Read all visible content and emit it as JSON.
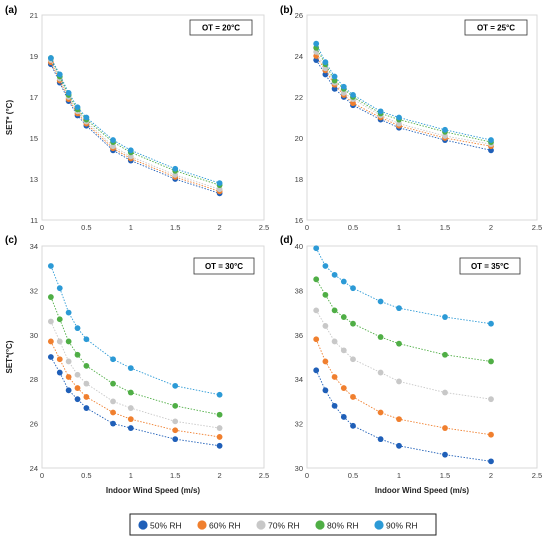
{
  "chart_data": [
    {
      "panel": "(a)",
      "type": "scatter",
      "annotation": "OT = 20°C",
      "ylabel": "SET* (°C)",
      "xlabel": "",
      "xlim": [
        0,
        2.5
      ],
      "ylim": [
        11,
        21
      ],
      "xticks": [
        "0",
        "0.5",
        "1",
        "1.5",
        "2",
        "2.5"
      ],
      "yticks": [
        "11",
        "13",
        "15",
        "17",
        "19",
        "21"
      ],
      "x": [
        0.1,
        0.2,
        0.3,
        0.4,
        0.5,
        0.8,
        1.0,
        1.5,
        2.0
      ],
      "series": [
        {
          "name": "50% RH",
          "values": [
            18.6,
            17.7,
            16.8,
            16.1,
            15.6,
            14.4,
            13.9,
            13.0,
            12.3
          ]
        },
        {
          "name": "60% RH",
          "values": [
            18.7,
            17.8,
            16.9,
            16.2,
            15.7,
            14.5,
            14.0,
            13.1,
            12.4
          ]
        },
        {
          "name": "70% RH",
          "values": [
            18.8,
            17.9,
            17.0,
            16.3,
            15.8,
            14.6,
            14.1,
            13.2,
            12.5
          ]
        },
        {
          "name": "80% RH",
          "values": [
            18.9,
            18.0,
            17.1,
            16.4,
            15.9,
            14.8,
            14.3,
            13.4,
            12.7
          ]
        },
        {
          "name": "90% RH",
          "values": [
            18.9,
            18.1,
            17.2,
            16.5,
            16.0,
            14.9,
            14.4,
            13.5,
            12.8
          ]
        }
      ]
    },
    {
      "panel": "(b)",
      "type": "scatter",
      "annotation": "OT = 25°C",
      "ylabel": "",
      "xlabel": "",
      "xlim": [
        0,
        2.5
      ],
      "ylim": [
        16,
        26
      ],
      "xticks": [
        "0",
        "0.5",
        "1",
        "1.5",
        "2",
        "2.5"
      ],
      "yticks": [
        "16",
        "18",
        "20",
        "22",
        "24",
        "26"
      ],
      "x": [
        0.1,
        0.2,
        0.3,
        0.4,
        0.5,
        0.8,
        1.0,
        1.5,
        2.0
      ],
      "series": [
        {
          "name": "50% RH",
          "values": [
            23.8,
            23.1,
            22.4,
            22.0,
            21.6,
            20.9,
            20.5,
            19.9,
            19.4
          ]
        },
        {
          "name": "60% RH",
          "values": [
            24.0,
            23.3,
            22.6,
            22.1,
            21.7,
            21.0,
            20.6,
            20.0,
            19.6
          ]
        },
        {
          "name": "70% RH",
          "values": [
            24.2,
            23.4,
            22.7,
            22.2,
            21.9,
            21.1,
            20.7,
            20.1,
            19.7
          ]
        },
        {
          "name": "80% RH",
          "values": [
            24.4,
            23.6,
            22.8,
            22.4,
            22.0,
            21.2,
            20.9,
            20.3,
            19.8
          ]
        },
        {
          "name": "90% RH",
          "values": [
            24.6,
            23.7,
            23.0,
            22.5,
            22.1,
            21.3,
            21.0,
            20.4,
            19.9
          ]
        }
      ]
    },
    {
      "panel": "(c)",
      "type": "scatter",
      "annotation": "OT = 30°C",
      "ylabel": "SET*(°C)",
      "xlabel": "Indoor Wind Speed (m/s)",
      "xlim": [
        0,
        2.5
      ],
      "ylim": [
        24,
        34
      ],
      "xticks": [
        "0",
        "0.5",
        "1",
        "1.5",
        "2",
        "2.5"
      ],
      "yticks": [
        "24",
        "26",
        "28",
        "30",
        "32",
        "34"
      ],
      "x": [
        0.1,
        0.2,
        0.3,
        0.4,
        0.5,
        0.8,
        1.0,
        1.5,
        2.0
      ],
      "series": [
        {
          "name": "50% RH",
          "values": [
            29.0,
            28.3,
            27.5,
            27.1,
            26.7,
            26.0,
            25.8,
            25.3,
            25.0
          ]
        },
        {
          "name": "60% RH",
          "values": [
            29.7,
            28.9,
            28.1,
            27.6,
            27.2,
            26.5,
            26.2,
            25.7,
            25.4
          ]
        },
        {
          "name": "70% RH",
          "values": [
            30.6,
            29.7,
            28.8,
            28.2,
            27.8,
            27.0,
            26.7,
            26.1,
            25.8
          ]
        },
        {
          "name": "80% RH",
          "values": [
            31.7,
            30.7,
            29.7,
            29.1,
            28.6,
            27.8,
            27.4,
            26.8,
            26.4
          ]
        },
        {
          "name": "90% RH",
          "values": [
            33.1,
            32.1,
            31.0,
            30.3,
            29.8,
            28.9,
            28.5,
            27.7,
            27.3
          ]
        }
      ]
    },
    {
      "panel": "(d)",
      "type": "scatter",
      "annotation": "OT = 35°C",
      "ylabel": "",
      "xlabel": "Indoor Wind Speed (m/s)",
      "xlim": [
        0,
        2.5
      ],
      "ylim": [
        30,
        40
      ],
      "xticks": [
        "0",
        "0.5",
        "1",
        "1.5",
        "2",
        "2.5"
      ],
      "yticks": [
        "30",
        "32",
        "34",
        "36",
        "38",
        "40"
      ],
      "x": [
        0.1,
        0.2,
        0.3,
        0.4,
        0.5,
        0.8,
        1.0,
        1.5,
        2.0
      ],
      "series": [
        {
          "name": "50% RH",
          "values": [
            34.4,
            33.5,
            32.8,
            32.3,
            31.9,
            31.3,
            31.0,
            30.6,
            30.3
          ]
        },
        {
          "name": "60% RH",
          "values": [
            35.8,
            34.8,
            34.1,
            33.6,
            33.2,
            32.5,
            32.2,
            31.8,
            31.5
          ]
        },
        {
          "name": "70% RH",
          "values": [
            37.1,
            36.4,
            35.7,
            35.3,
            34.9,
            34.3,
            33.9,
            33.4,
            33.1
          ]
        },
        {
          "name": "80% RH",
          "values": [
            38.5,
            37.8,
            37.1,
            36.8,
            36.5,
            35.9,
            35.6,
            35.1,
            34.8
          ]
        },
        {
          "name": "90% RH",
          "values": [
            39.9,
            39.1,
            38.7,
            38.4,
            38.1,
            37.5,
            37.2,
            36.8,
            36.5
          ]
        }
      ]
    }
  ],
  "legend": {
    "entries": [
      "50% RH",
      "60% RH",
      "70% RH",
      "80% RH",
      "90% RH"
    ],
    "placement": "bottom"
  },
  "colors": {
    "50% RH": "#1f5fb8",
    "60% RH": "#f07f2e",
    "70% RH": "#c8c8c8",
    "80% RH": "#4fae45",
    "90% RH": "#2c9ad6"
  }
}
